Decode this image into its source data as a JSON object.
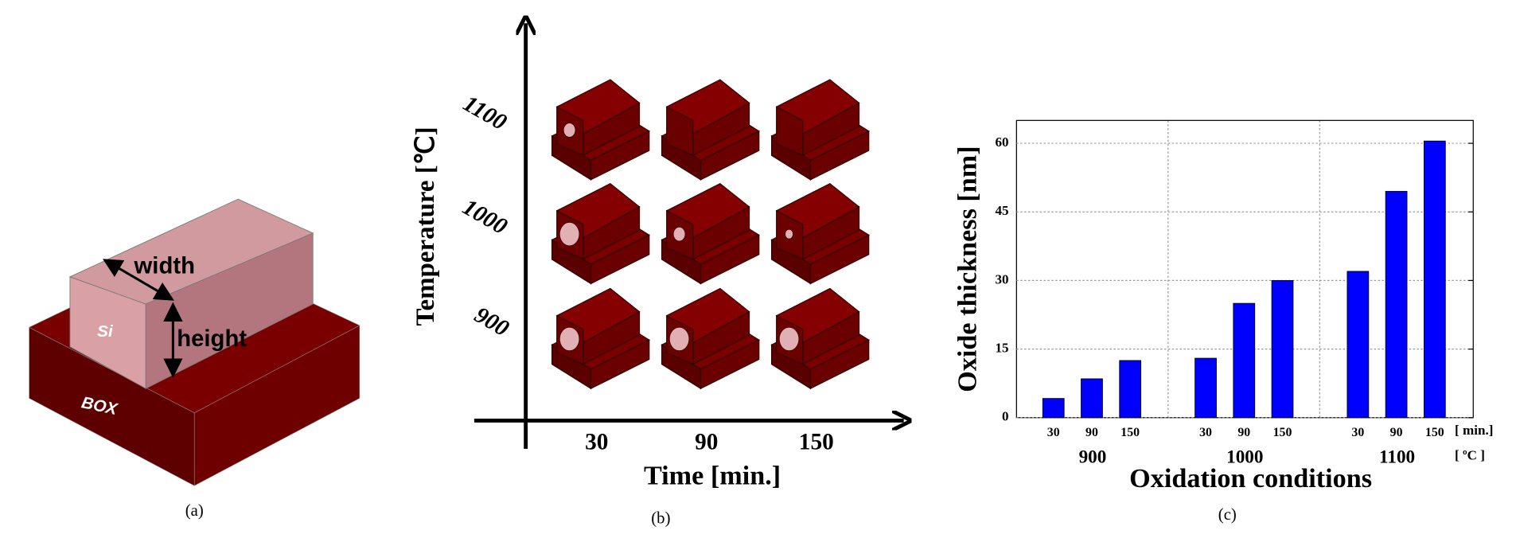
{
  "panel_a": {
    "labels": {
      "width": "width",
      "height": "height",
      "si": "Si",
      "box": "BOX"
    },
    "caption": "(a)"
  },
  "panel_b": {
    "y_label": "Temperature [℃]",
    "x_label": "Time [min.]",
    "temperatures": [
      "1100",
      "1000",
      "900"
    ],
    "times": [
      "30",
      "90",
      "150"
    ],
    "caption": "(b)"
  },
  "chart_data": {
    "type": "bar",
    "y_label": "Oxide thickness [nm]",
    "x_label": "Oxidation conditions",
    "groups": [
      {
        "name": "900",
        "categories": [
          "30",
          "90",
          "150"
        ],
        "values": [
          4.2,
          8.5,
          12.5
        ]
      },
      {
        "name": "1000",
        "categories": [
          "30",
          "90",
          "150"
        ],
        "values": [
          13,
          25,
          30
        ]
      },
      {
        "name": "1100",
        "categories": [
          "30",
          "90",
          "150"
        ],
        "values": [
          32,
          49.5,
          60.5
        ]
      }
    ],
    "category_unit": "[ min.]",
    "group_unit": "[ ºC ]",
    "color": "#0000ff",
    "ylim": [
      0,
      65
    ],
    "yticks": [
      0,
      15,
      30,
      45,
      60
    ],
    "grid": true,
    "caption": "(c)"
  }
}
